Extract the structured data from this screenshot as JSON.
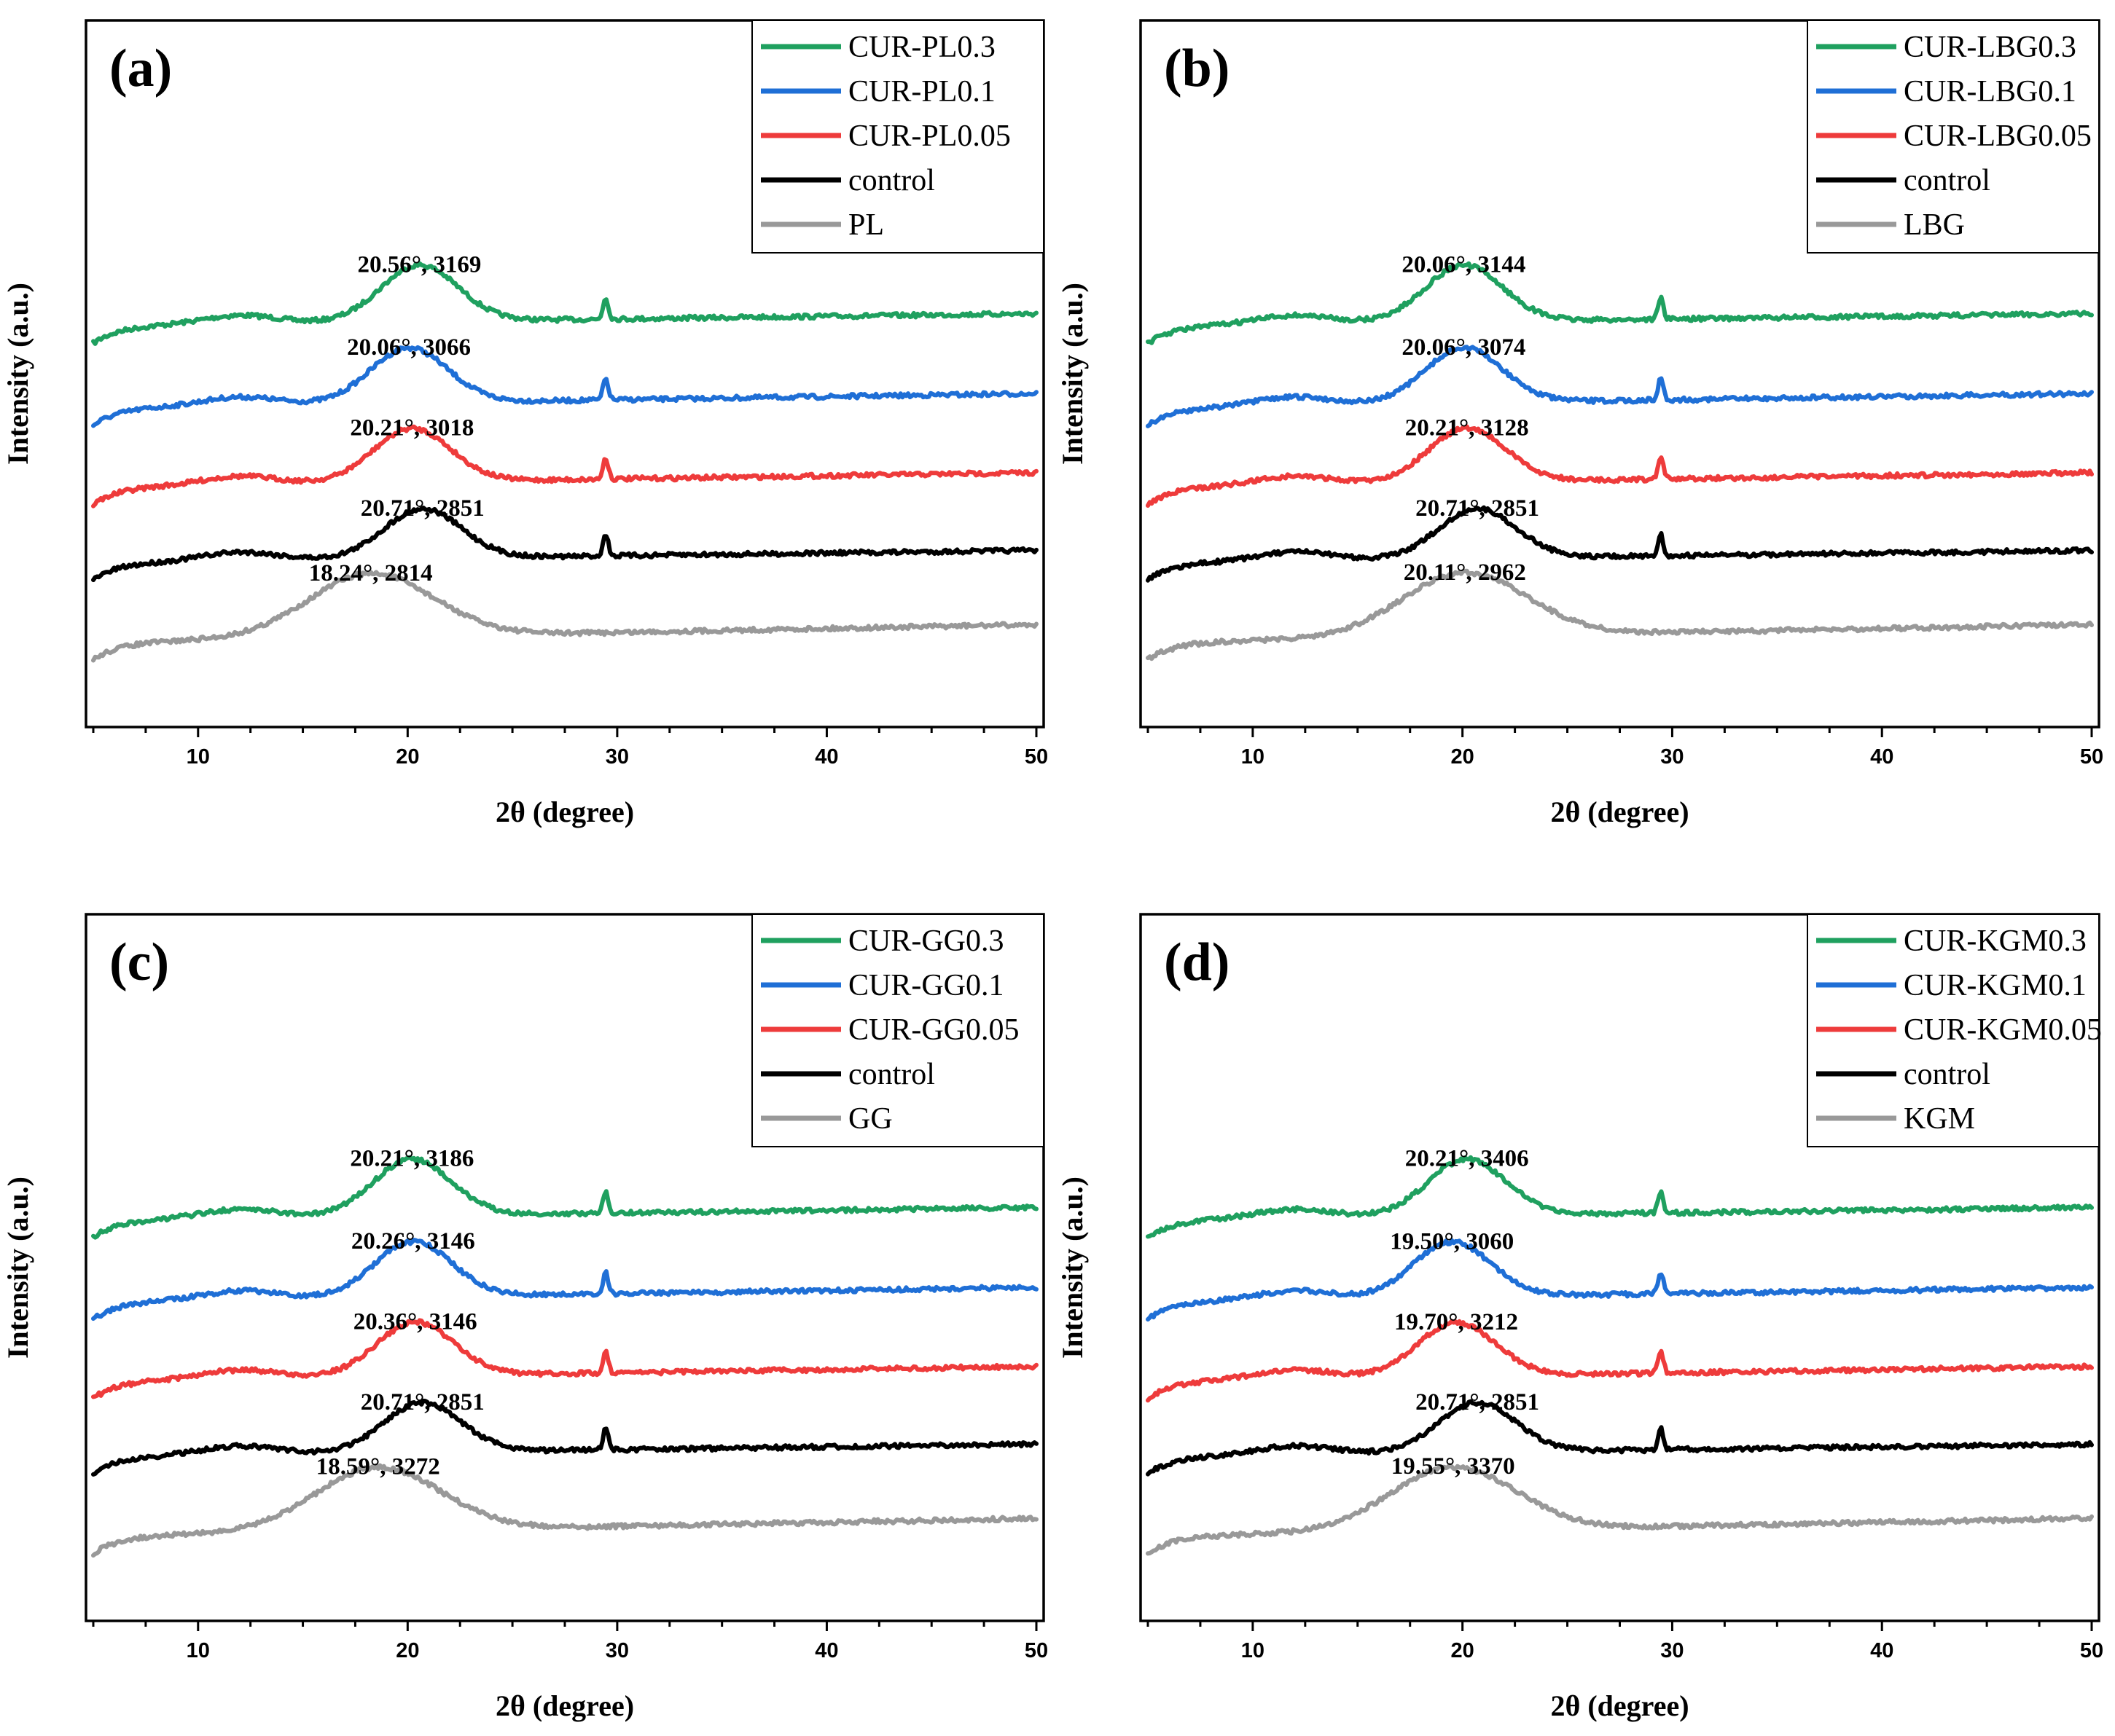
{
  "colors": {
    "CUR-0.3": "#1FA05F",
    "CUR-0.1": "#1F6FD6",
    "CUR-0.05": "#EE3B3B",
    "control": "#000000",
    "base": "#999999"
  },
  "chart_data": [
    {
      "type": "line",
      "panel_label": "(a)",
      "xlabel": "2θ (degree)",
      "ylabel": "Intensity (a.u.)",
      "xlim": [
        5,
        50
      ],
      "xticks": [
        10,
        20,
        30,
        40,
        50
      ],
      "legend_position": "top-right",
      "series": [
        {
          "name": "CUR-PL0.3",
          "role": "CUR-0.3",
          "peak_x": 20.56,
          "peak_label": "20.56°, 3169"
        },
        {
          "name": "CUR-PL0.1",
          "role": "CUR-0.1",
          "peak_x": 20.06,
          "peak_label": "20.06°, 3066"
        },
        {
          "name": "CUR-PL0.05",
          "role": "CUR-0.05",
          "peak_x": 20.21,
          "peak_label": "20.21°, 3018"
        },
        {
          "name": "control",
          "role": "control",
          "peak_x": 20.71,
          "peak_label": "20.71°, 2851"
        },
        {
          "name": "PL",
          "role": "base",
          "peak_x": 18.24,
          "peak_label": "18.24°, 2814"
        }
      ]
    },
    {
      "type": "line",
      "panel_label": "(b)",
      "xlabel": "2θ (degree)",
      "ylabel": "Intensity (a.u.)",
      "xlim": [
        5,
        50
      ],
      "xticks": [
        10,
        20,
        30,
        40,
        50
      ],
      "legend_position": "top-right",
      "series": [
        {
          "name": "CUR-LBG0.3",
          "role": "CUR-0.3",
          "peak_x": 20.06,
          "peak_label": "20.06°, 3144"
        },
        {
          "name": "CUR-LBG0.1",
          "role": "CUR-0.1",
          "peak_x": 20.06,
          "peak_label": "20.06°, 3074"
        },
        {
          "name": "CUR-LBG0.05",
          "role": "CUR-0.05",
          "peak_x": 20.21,
          "peak_label": "20.21°, 3128"
        },
        {
          "name": "control",
          "role": "control",
          "peak_x": 20.71,
          "peak_label": "20.71°, 2851"
        },
        {
          "name": "LBG",
          "role": "base",
          "peak_x": 20.11,
          "peak_label": "20.11°, 2962"
        }
      ]
    },
    {
      "type": "line",
      "panel_label": "(c)",
      "xlabel": "2θ (degree)",
      "ylabel": "Intensity (a.u.)",
      "xlim": [
        5,
        50
      ],
      "xticks": [
        10,
        20,
        30,
        40,
        50
      ],
      "legend_position": "top-right",
      "series": [
        {
          "name": "CUR-GG0.3",
          "role": "CUR-0.3",
          "peak_x": 20.21,
          "peak_label": "20.21°, 3186"
        },
        {
          "name": "CUR-GG0.1",
          "role": "CUR-0.1",
          "peak_x": 20.26,
          "peak_label": "20.26°, 3146"
        },
        {
          "name": "CUR-GG0.05",
          "role": "CUR-0.05",
          "peak_x": 20.36,
          "peak_label": "20.36°, 3146"
        },
        {
          "name": "control",
          "role": "control",
          "peak_x": 20.71,
          "peak_label": "20.71°, 2851"
        },
        {
          "name": "GG",
          "role": "base",
          "peak_x": 18.59,
          "peak_label": "18.59°, 3272"
        }
      ]
    },
    {
      "type": "line",
      "panel_label": "(d)",
      "xlabel": "2θ (degree)",
      "ylabel": "Intensity (a.u.)",
      "xlim": [
        5,
        50
      ],
      "xticks": [
        10,
        20,
        30,
        40,
        50
      ],
      "legend_position": "top-right",
      "series": [
        {
          "name": "CUR-KGM0.3",
          "role": "CUR-0.3",
          "peak_x": 20.21,
          "peak_label": "20.21°, 3406"
        },
        {
          "name": "CUR-KGM0.1",
          "role": "CUR-0.1",
          "peak_x": 19.5,
          "peak_label": "19.50°, 3060"
        },
        {
          "name": "CUR-KGM0.05",
          "role": "CUR-0.05",
          "peak_x": 19.7,
          "peak_label": "19.70°, 3212"
        },
        {
          "name": "control",
          "role": "control",
          "peak_x": 20.71,
          "peak_label": "20.71°, 2851"
        },
        {
          "name": "KGM",
          "role": "base",
          "peak_x": 19.55,
          "peak_label": "19.55°, 3370"
        }
      ]
    }
  ]
}
